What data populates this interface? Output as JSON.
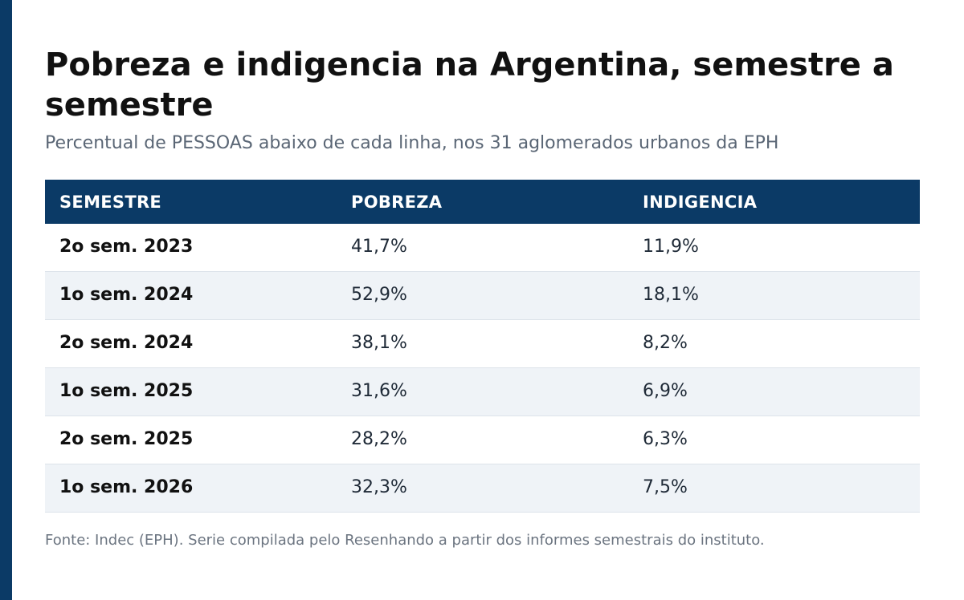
{
  "title": "Pobreza e indigencia na Argentina, semestre a semestre",
  "subtitle": "Percentual de PESSOAS abaixo de cada linha, nos 31 aglomerados urbanos da EPH",
  "table": {
    "headers": [
      "SEMESTRE",
      "POBREZA",
      "INDIGENCIA"
    ],
    "rows": [
      [
        "2o sem. 2023",
        "41,7%",
        "11,9%"
      ],
      [
        "1o sem. 2024",
        "52,9%",
        "18,1%"
      ],
      [
        "2o sem. 2024",
        "38,1%",
        "8,2%"
      ],
      [
        "1o sem. 2025",
        "31,6%",
        "6,9%"
      ],
      [
        "2o sem. 2025",
        "28,2%",
        "6,3%"
      ],
      [
        "1o sem. 2026",
        "32,3%",
        "7,5%"
      ]
    ]
  },
  "source": "Fonte: Indec (EPH). Serie compilada pelo Resenhando a partir dos informes semestrais do instituto.",
  "colors": {
    "accent": "#0b3a66",
    "row_alt": "#eff3f7",
    "text_muted": "#5a6675"
  }
}
